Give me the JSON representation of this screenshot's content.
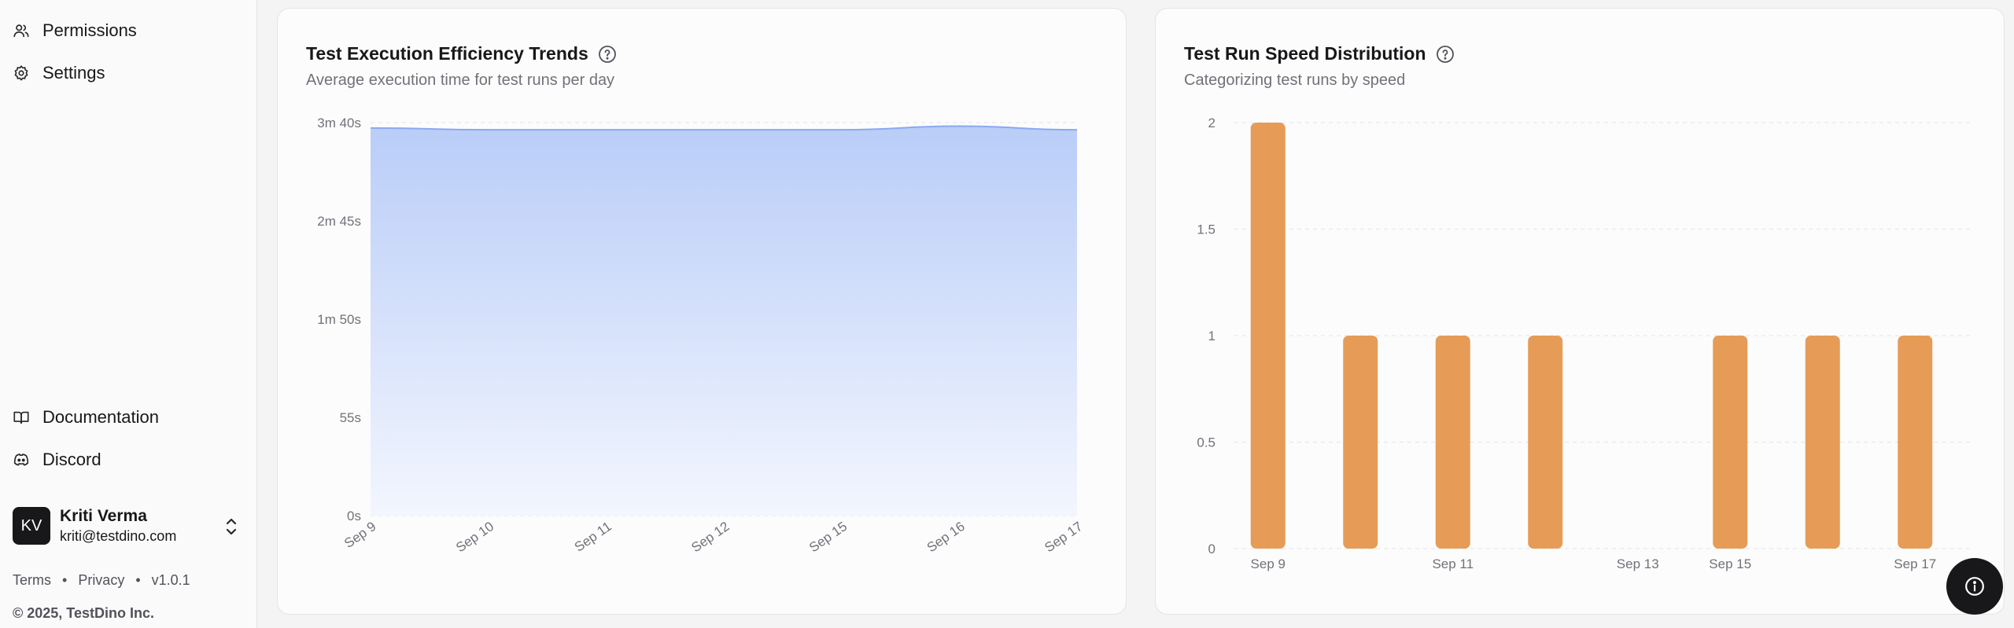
{
  "sidebar": {
    "nav": [
      {
        "label": "Permissions",
        "icon": "users-icon"
      },
      {
        "label": "Settings",
        "icon": "gear-icon"
      }
    ],
    "bottom_nav": [
      {
        "label": "Documentation",
        "icon": "book-icon"
      },
      {
        "label": "Discord",
        "icon": "discord-icon"
      }
    ],
    "user": {
      "initials": "KV",
      "name": "Kriti Verma",
      "email": "kriti@testdino.com"
    },
    "footer": {
      "terms": "Terms",
      "privacy": "Privacy",
      "version": "v1.0.1",
      "sep": "•"
    },
    "copyright": "© 2025, TestDino Inc."
  },
  "cards": {
    "efficiency": {
      "title": "Test Execution Efficiency Trends",
      "subtitle": "Average execution time for test runs per day"
    },
    "speed": {
      "title": "Test Run Speed Distribution",
      "subtitle": "Categorizing test runs by speed"
    }
  },
  "colors": {
    "area": "#a8c0f7",
    "area_line": "#8aa9f0",
    "bar": "#e69c57"
  },
  "chart_data": [
    {
      "type": "area",
      "x": [
        "Sep 9",
        "Sep 10",
        "Sep 11",
        "Sep 12",
        "Sep 15",
        "Sep 16",
        "Sep 17"
      ],
      "y_ticks": [
        "0s",
        "55s",
        "1m 50s",
        "2m 45s",
        "3m 40s"
      ],
      "ylim": [
        0,
        220
      ],
      "values": [
        217,
        216,
        216,
        216,
        216,
        218,
        216
      ]
    },
    {
      "type": "bar",
      "categories": [
        "Sep 9",
        "Sep 10",
        "Sep 11",
        "Sep 12",
        "Sep 13",
        "Sep 15",
        "Sep 16",
        "Sep 17"
      ],
      "x_tick_labels": [
        "Sep 9",
        "Sep 11",
        "Sep 13",
        "Sep 15",
        "Sep 17"
      ],
      "y_ticks": [
        "0",
        "0.5",
        "1",
        "1.5",
        "2"
      ],
      "ylim": [
        0,
        2
      ],
      "values": [
        2,
        1,
        1,
        1,
        0,
        1,
        1,
        1
      ]
    }
  ]
}
